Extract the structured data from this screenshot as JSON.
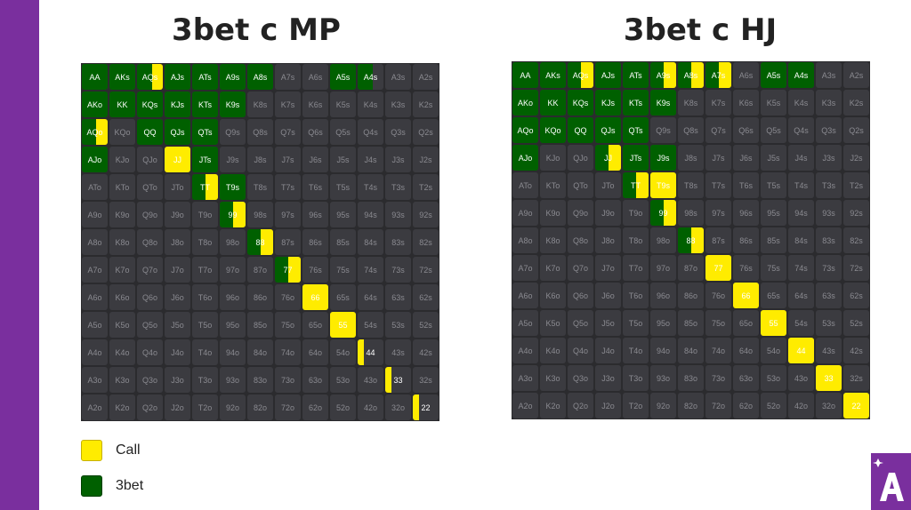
{
  "titles": {
    "mp": "3bet с MP",
    "hj": "3bet с HJ"
  },
  "legend": {
    "call": "Call",
    "threebet": "3bet"
  },
  "colors": {
    "call": "#ffec00",
    "threebet": "#006000",
    "cell": "#3b3b40",
    "grid_bg": "#2b2b2e",
    "brand": "#7a2f9e"
  },
  "logo_icon": "A-logo-icon",
  "ranks": [
    "A",
    "K",
    "Q",
    "J",
    "T",
    "9",
    "8",
    "7",
    "6",
    "5",
    "4",
    "3",
    "2"
  ],
  "ranges": {
    "mp": {
      "AA": [
        1,
        0
      ],
      "AKs": [
        1,
        0
      ],
      "AQs": [
        0.6,
        0.4
      ],
      "AJs": [
        1,
        0
      ],
      "ATs": [
        1,
        0
      ],
      "A9s": [
        1,
        0
      ],
      "A8s": [
        1,
        0
      ],
      "A5s": [
        1,
        0
      ],
      "A4s": [
        0.6,
        0
      ],
      "AKo": [
        1,
        0
      ],
      "KK": [
        1,
        0
      ],
      "KQs": [
        1,
        0
      ],
      "KJs": [
        1,
        0
      ],
      "KTs": [
        1,
        0
      ],
      "K9s": [
        1,
        0
      ],
      "AQo": [
        0.55,
        0.45
      ],
      "KQo": [
        0,
        0
      ],
      "QQ": [
        1,
        0
      ],
      "QJs": [
        1,
        0
      ],
      "QTs": [
        1,
        0
      ],
      "AJo": [
        1,
        0
      ],
      "JJ": [
        0,
        1
      ],
      "JTs": [
        1,
        0
      ],
      "TT": [
        0.5,
        0.5
      ],
      "T9s": [
        1,
        0
      ],
      "99": [
        0.5,
        0.5
      ],
      "88": [
        0.5,
        0.5
      ],
      "77": [
        0.5,
        0.5
      ],
      "66": [
        0,
        1
      ],
      "55": [
        0,
        1
      ],
      "44": [
        0,
        0.25
      ],
      "33": [
        0,
        0.25
      ],
      "22": [
        0,
        0.25
      ]
    },
    "hj": {
      "AA": [
        1,
        0
      ],
      "AKs": [
        1,
        0
      ],
      "AQs": [
        0.5,
        0.5
      ],
      "AJs": [
        1,
        0
      ],
      "ATs": [
        1,
        0
      ],
      "A9s": [
        0.5,
        0.5
      ],
      "A8s": [
        0.5,
        0.5
      ],
      "A7s": [
        0.5,
        0.5
      ],
      "A5s": [
        1,
        0
      ],
      "A4s": [
        1,
        0
      ],
      "AKo": [
        1,
        0
      ],
      "KK": [
        1,
        0
      ],
      "KQs": [
        1,
        0
      ],
      "KJs": [
        1,
        0
      ],
      "KTs": [
        1,
        0
      ],
      "K9s": [
        1,
        0
      ],
      "AQo": [
        1,
        0
      ],
      "KQo": [
        1,
        0
      ],
      "QQ": [
        1,
        0
      ],
      "QJs": [
        1,
        0
      ],
      "QTs": [
        1,
        0
      ],
      "AJo": [
        1,
        0
      ],
      "JJ": [
        0.5,
        0.5
      ],
      "JTs": [
        1,
        0
      ],
      "J9s": [
        1,
        0
      ],
      "TT": [
        0.5,
        0.5
      ],
      "T9s": [
        0,
        1
      ],
      "99": [
        0.5,
        0.5
      ],
      "88": [
        0.5,
        0.5
      ],
      "77": [
        0,
        1
      ],
      "66": [
        0,
        1
      ],
      "55": [
        0,
        1
      ],
      "44": [
        0,
        1
      ],
      "33": [
        0,
        1
      ],
      "22": [
        0,
        1
      ]
    }
  }
}
